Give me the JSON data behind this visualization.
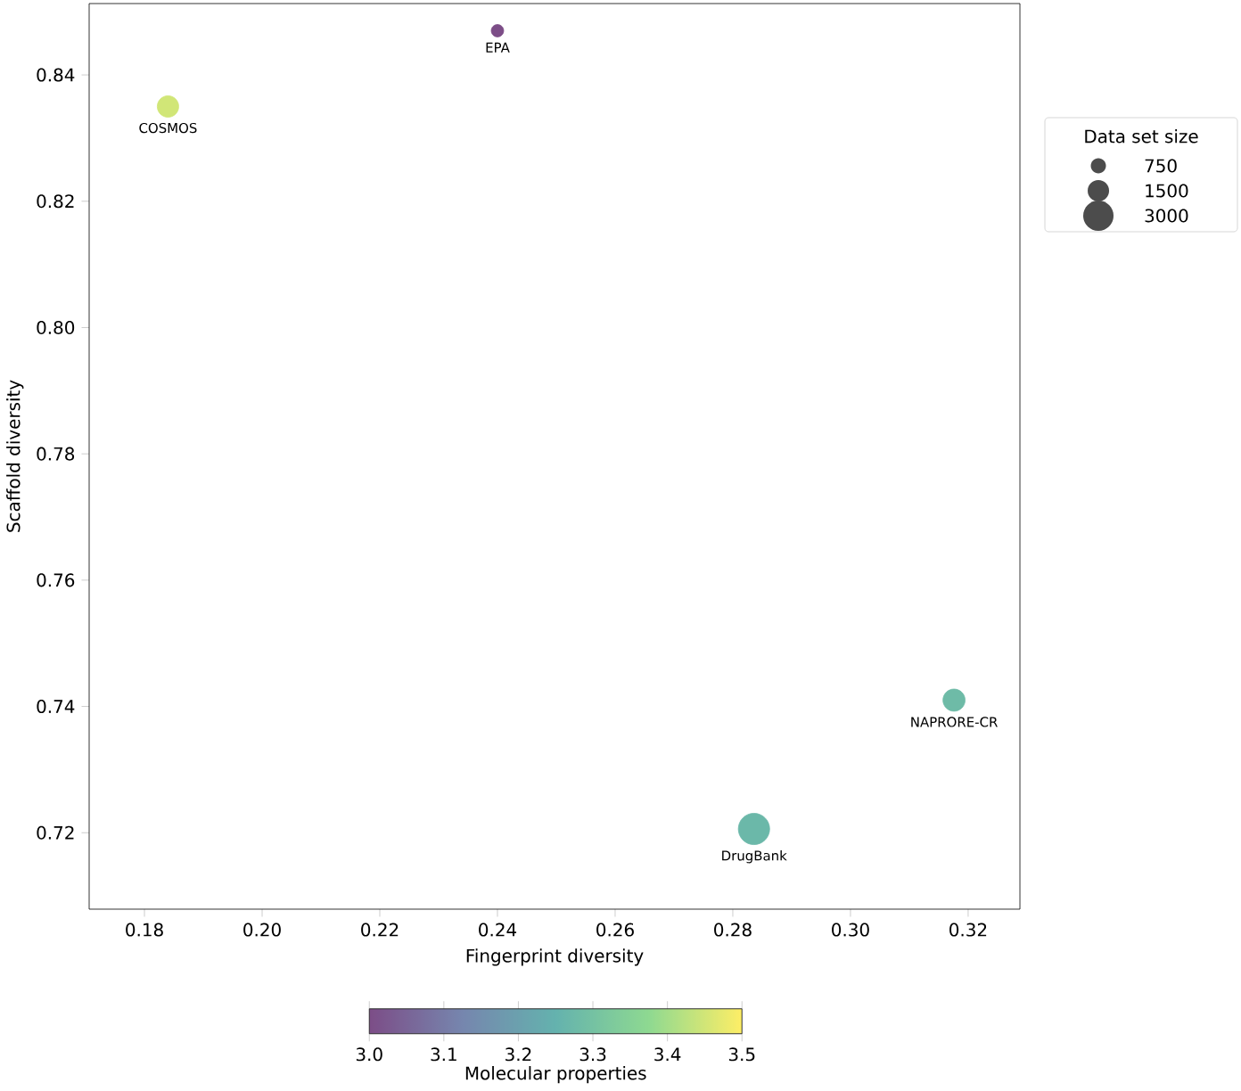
{
  "chart_data": {
    "type": "bubble",
    "xlabel": "Fingerprint diversity",
    "ylabel": "Scaffold diversity",
    "legend_title": "Data set size",
    "clabel": "Molecular properties",
    "x": [
      0.24,
      0.184,
      0.3176,
      0.2836
    ],
    "values": [
      0.847,
      0.835,
      0.741,
      0.7206
    ],
    "sizes": [
      500,
      1500,
      1600,
      3200
    ],
    "cvalues": [
      3.0,
      3.45,
      3.28,
      3.27
    ],
    "size_legend": [
      750,
      1500,
      3000
    ],
    "annotations": [
      {
        "text": "EPA",
        "x": 0.24,
        "y": 0.847
      },
      {
        "text": "COSMOS",
        "x": 0.184,
        "y": 0.835
      },
      {
        "text": "NAPRORE-CR",
        "x": 0.3176,
        "y": 0.741
      },
      {
        "text": "DrugBank",
        "x": 0.2836,
        "y": 0.7206
      }
    ],
    "xlim": [
      0.1706,
      0.3288
    ],
    "ylim": [
      0.7079,
      0.8513
    ],
    "xticks": [
      {
        "value": 0.18,
        "label": "0.18"
      },
      {
        "value": 0.2,
        "label": "0.20"
      },
      {
        "value": 0.22,
        "label": "0.22"
      },
      {
        "value": 0.24,
        "label": "0.24"
      },
      {
        "value": 0.26,
        "label": "0.26"
      },
      {
        "value": 0.28,
        "label": "0.28"
      },
      {
        "value": 0.3,
        "label": "0.30"
      },
      {
        "value": 0.32,
        "label": "0.32"
      }
    ],
    "yticks": [
      {
        "value": 0.72,
        "label": "0.72"
      },
      {
        "value": 0.74,
        "label": "0.74"
      },
      {
        "value": 0.76,
        "label": "0.76"
      },
      {
        "value": 0.78,
        "label": "0.78"
      },
      {
        "value": 0.8,
        "label": "0.80"
      },
      {
        "value": 0.82,
        "label": "0.82"
      },
      {
        "value": 0.84,
        "label": "0.84"
      }
    ],
    "clim": [
      3.0,
      3.5
    ],
    "cticks": [
      {
        "value": 3.0,
        "label": "3.0"
      },
      {
        "value": 3.1,
        "label": "3.1"
      },
      {
        "value": 3.2,
        "label": "3.2"
      },
      {
        "value": 3.3,
        "label": "3.3"
      },
      {
        "value": 3.4,
        "label": "3.4"
      },
      {
        "value": 3.5,
        "label": "3.5"
      }
    ],
    "grid": false
  }
}
